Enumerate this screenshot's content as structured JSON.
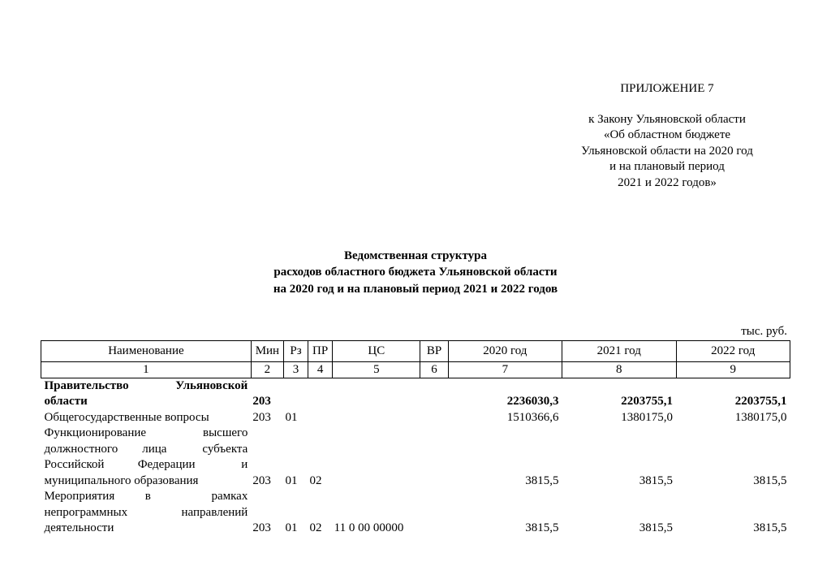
{
  "header": {
    "appendix": "ПРИЛОЖЕНИЕ 7",
    "ref_line1": "к Закону Ульяновской области",
    "ref_line2": "«Об областном бюджете",
    "ref_line3": "Ульяновской области на 2020 год",
    "ref_line4": "и на плановый период",
    "ref_line5": "2021 и 2022 годов»"
  },
  "title": {
    "line1": "Ведомственная структура",
    "line2": "расходов областного бюджета Ульяновской области",
    "line3": "на 2020 год и на плановый период 2021 и 2022 годов"
  },
  "unit": "тыс. руб.",
  "columns": {
    "c1": "Наименование",
    "c2": "Мин",
    "c3": "Рз",
    "c4": "ПР",
    "c5": "ЦС",
    "c6": "ВР",
    "c7": "2020 год",
    "c8": "2021 год",
    "c9": "2022 год"
  },
  "colnums": {
    "c1": "1",
    "c2": "2",
    "c3": "3",
    "c4": "4",
    "c5": "5",
    "c6": "6",
    "c7": "7",
    "c8": "8",
    "c9": "9"
  },
  "rows": {
    "r1": {
      "name_l1": "Правительство",
      "name_r1": "Ульяновской",
      "name_l2": "области",
      "min": "203",
      "y2020": "2236030,3",
      "y2021": "2203755,1",
      "y2022": "2203755,1"
    },
    "r2": {
      "name": "Общегосударственные вопросы",
      "min": "203",
      "rz": "01",
      "y2020": "1510366,6",
      "y2021": "1380175,0",
      "y2022": "1380175,0"
    },
    "r3": {
      "l1a": "Функционирование",
      "l1b": "высшего",
      "l2a": "должностного",
      "l2b": "лица",
      "l2c": "субъекта",
      "l3a": "Российской",
      "l3b": "Федерации",
      "l3c": "и",
      "l4": "муниципального образования",
      "min": "203",
      "rz": "01",
      "pr": "02",
      "y2020": "3815,5",
      "y2021": "3815,5",
      "y2022": "3815,5"
    },
    "r4": {
      "l1a": "Мероприятия",
      "l1b": "в",
      "l1c": "рамках",
      "l2a": "непрограммных",
      "l2b": "направлений",
      "l3": "деятельности",
      "min": "203",
      "rz": "01",
      "pr": "02",
      "cs": "11 0 00 00000",
      "y2020": "3815,5",
      "y2021": "3815,5",
      "y2022": "3815,5"
    }
  },
  "style": {
    "font_family": "Times New Roman",
    "base_fontsize_pt": 12,
    "text_color": "#000000",
    "background_color": "#ffffff",
    "border_color": "#000000"
  }
}
